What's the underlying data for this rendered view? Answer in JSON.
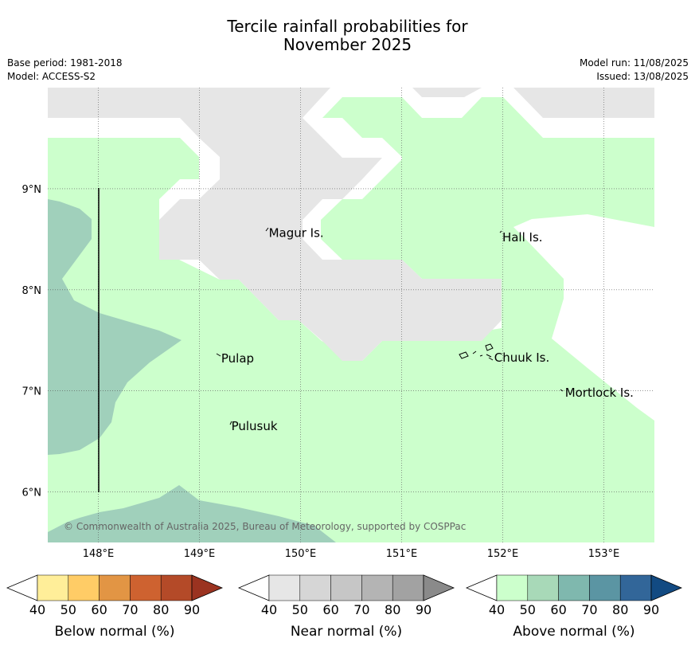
{
  "header": {
    "title_line1": "Tercile rainfall probabilities for",
    "title_line2": "November 2025",
    "base_period": "Base period: 1981-2018",
    "model": "Model: ACCESS-S2",
    "model_run": "Model run: 11/08/2025",
    "issued": "Issued: 13/08/2025"
  },
  "map": {
    "lon_range": [
      147.5,
      153.5
    ],
    "lat_range": [
      5.5,
      10.0
    ],
    "lon_ticks": [
      {
        "value": 148,
        "label": "148°E"
      },
      {
        "value": 149,
        "label": "149°E"
      },
      {
        "value": 150,
        "label": "150°E"
      },
      {
        "value": 151,
        "label": "151°E"
      },
      {
        "value": 152,
        "label": "152°E"
      },
      {
        "value": 153,
        "label": "153°E"
      }
    ],
    "lat_ticks": [
      {
        "value": 9,
        "label": "9°N"
      },
      {
        "value": 8,
        "label": "8°N"
      },
      {
        "value": 7,
        "label": "7°N"
      },
      {
        "value": 6,
        "label": "6°N"
      }
    ],
    "places": [
      {
        "name": "Magur Is.",
        "lon": 149.67,
        "lat": 8.56
      },
      {
        "name": "Hall Is.",
        "lon": 151.98,
        "lat": 8.52
      },
      {
        "name": "Pulap",
        "lon": 149.2,
        "lat": 7.32
      },
      {
        "name": "Chuuk Is.",
        "lon": 151.9,
        "lat": 7.33
      },
      {
        "name": "Mortlock Is.",
        "lon": 152.6,
        "lat": 6.98
      },
      {
        "name": "Pulusuk",
        "lon": 149.3,
        "lat": 6.65
      }
    ],
    "copyright": "© Commonwealth of Australia 2025, Bureau of Meteorology, supported by COSPPac",
    "colors": {
      "near_normal_40_50": "#e6e6e6",
      "above_normal_40_50": "#ccffcc",
      "above_normal_50_60": "#a0d0bb"
    }
  },
  "legend": {
    "tick_labels": [
      "40",
      "50",
      "60",
      "70",
      "80",
      "90"
    ],
    "bars": [
      {
        "label": "Below normal (%)",
        "colors": [
          "#ffee99",
          "#ffcc66",
          "#e29544",
          "#ce6230",
          "#b44a28"
        ],
        "extend_color": "#9b3320"
      },
      {
        "label": "Near normal (%)",
        "colors": [
          "#e6e6e6",
          "#d6d6d6",
          "#c6c6c6",
          "#b4b4b4",
          "#a2a2a2"
        ],
        "extend_color": "#8a8a8a"
      },
      {
        "label": "Above normal (%)",
        "colors": [
          "#ccffcc",
          "#a8d9b8",
          "#7fb8ae",
          "#5b95a3",
          "#326699"
        ],
        "extend_color": "#124a82"
      }
    ]
  }
}
